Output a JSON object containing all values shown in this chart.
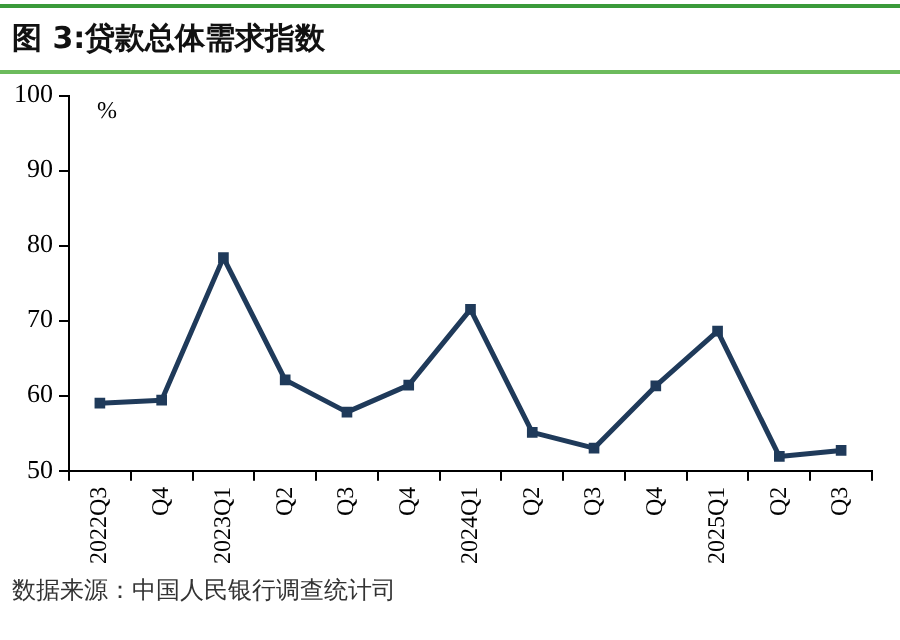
{
  "chart_data": {
    "type": "line",
    "title": "图 3:贷款总体需求指数",
    "ylabel": "%",
    "categories": [
      "2022Q3",
      "Q4",
      "2023Q1",
      "Q2",
      "Q3",
      "Q4",
      "2024Q1",
      "Q2",
      "Q3",
      "Q4",
      "2025Q1",
      "Q2",
      "Q3"
    ],
    "series": [
      {
        "color": "#1f3a5a",
        "values": [
          59.0,
          59.4,
          78.4,
          62.1,
          57.8,
          61.4,
          71.5,
          55.1,
          53.0,
          61.3,
          68.6,
          51.9,
          52.7
        ]
      }
    ],
    "ylim": [
      50,
      100
    ],
    "yticks": [
      50,
      60,
      70,
      80,
      90,
      100
    ],
    "grid": false,
    "legend": false,
    "marker": "square",
    "line_style": "solid",
    "annotations": [
      "数据来源：中国人民银行调查统计司"
    ]
  }
}
